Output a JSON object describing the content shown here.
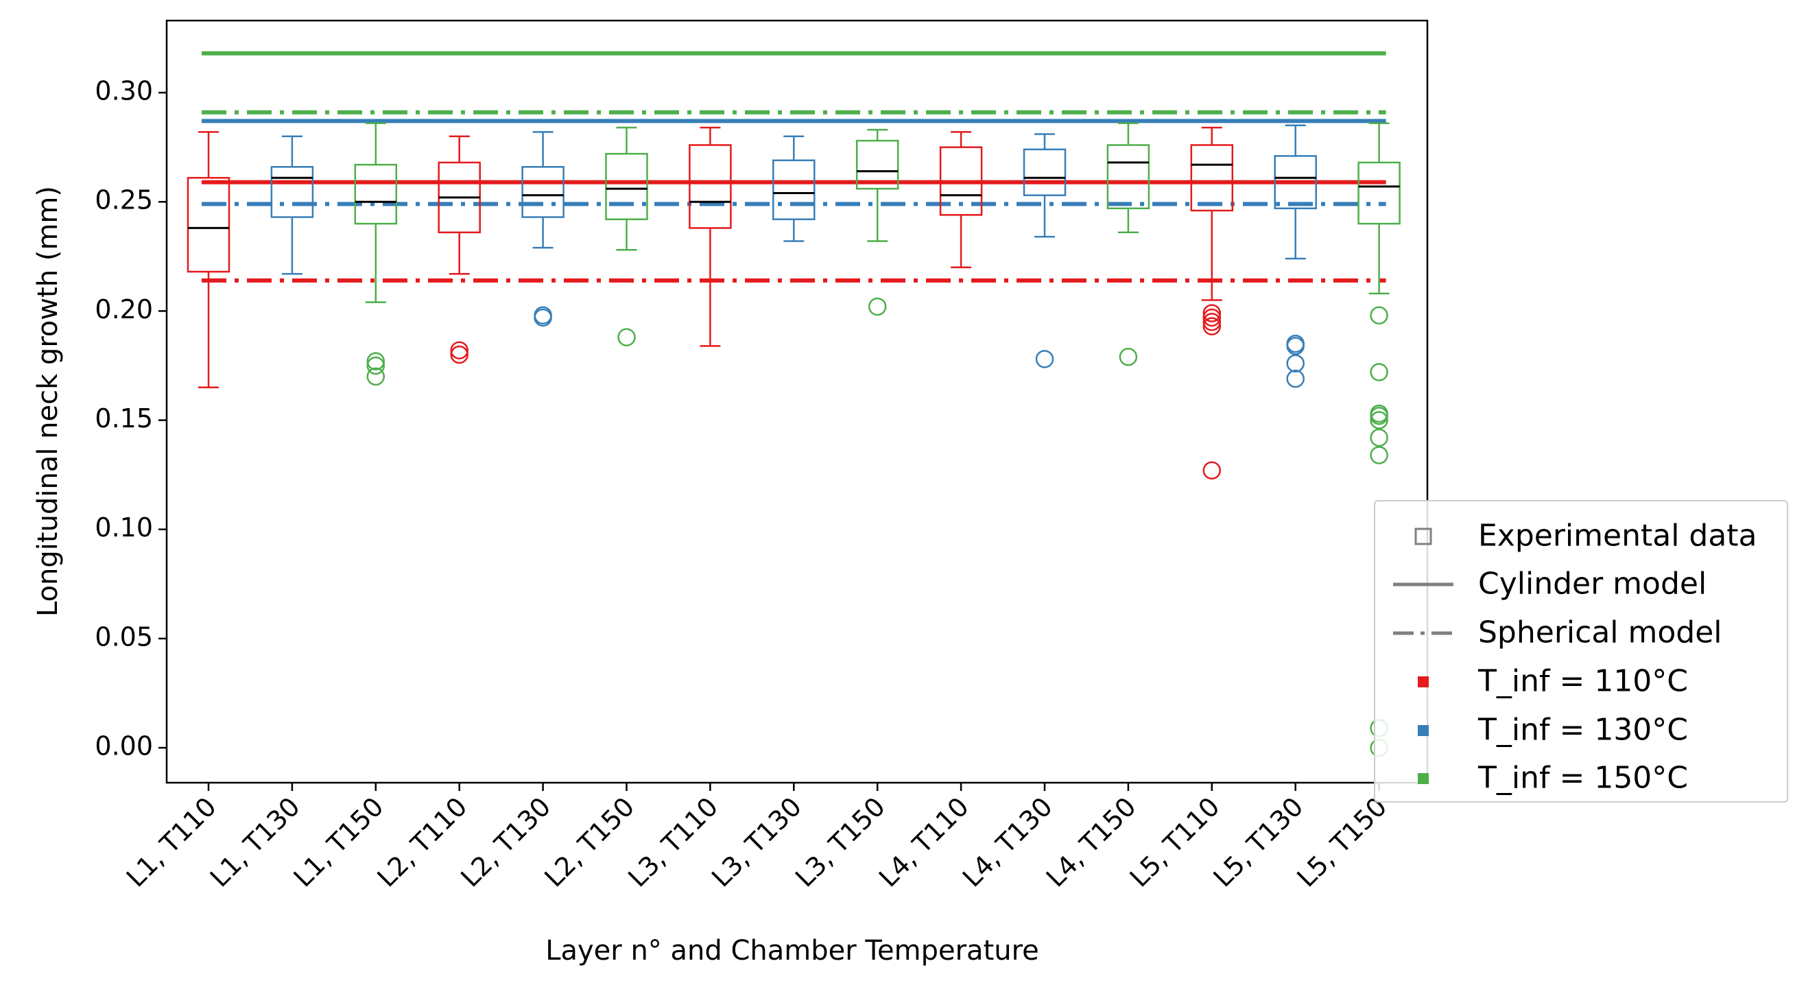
{
  "chart_data": {
    "type": "boxplot",
    "xlabel": "Layer n° and Chamber Temperature",
    "ylabel": "Longitudinal neck growth (mm)",
    "ylim": [
      -0.016,
      0.333
    ],
    "yticks": [
      "0.00",
      "0.05",
      "0.10",
      "0.15",
      "0.20",
      "0.25",
      "0.30"
    ],
    "colors": {
      "T110": "#e41a1c",
      "T130": "#377eb8",
      "T150": "#4daf4a",
      "median": "#000000",
      "legend_gray": "#808080"
    },
    "categories": [
      "L1, T110",
      "L1, T130",
      "L1, T150",
      "L2, T110",
      "L2, T130",
      "L2, T150",
      "L3, T110",
      "L3, T130",
      "L3, T150",
      "L4, T110",
      "L4, T130",
      "L4, T150",
      "L5, T110",
      "L5, T130",
      "L5, T150"
    ],
    "boxes": [
      {
        "label": "L1, T110",
        "temp": "T110",
        "whislo": 0.165,
        "q1": 0.218,
        "med": 0.238,
        "q3": 0.261,
        "whishi": 0.282,
        "fliers": []
      },
      {
        "label": "L1, T130",
        "temp": "T130",
        "whislo": 0.217,
        "q1": 0.243,
        "med": 0.261,
        "q3": 0.266,
        "whishi": 0.28,
        "fliers": []
      },
      {
        "label": "L1, T150",
        "temp": "T150",
        "whislo": 0.204,
        "q1": 0.24,
        "med": 0.25,
        "q3": 0.267,
        "whishi": 0.286,
        "fliers": [
          0.177,
          0.175,
          0.17
        ]
      },
      {
        "label": "L2, T110",
        "temp": "T110",
        "whislo": 0.217,
        "q1": 0.236,
        "med": 0.252,
        "q3": 0.268,
        "whishi": 0.28,
        "fliers": [
          0.182,
          0.18
        ]
      },
      {
        "label": "L2, T130",
        "temp": "T130",
        "whislo": 0.229,
        "q1": 0.243,
        "med": 0.253,
        "q3": 0.266,
        "whishi": 0.282,
        "fliers": [
          0.198,
          0.197
        ]
      },
      {
        "label": "L2, T150",
        "temp": "T150",
        "whislo": 0.228,
        "q1": 0.242,
        "med": 0.256,
        "q3": 0.272,
        "whishi": 0.284,
        "fliers": [
          0.188
        ]
      },
      {
        "label": "L3, T110",
        "temp": "T110",
        "whislo": 0.184,
        "q1": 0.238,
        "med": 0.25,
        "q3": 0.276,
        "whishi": 0.284,
        "fliers": []
      },
      {
        "label": "L3, T130",
        "temp": "T130",
        "whislo": 0.232,
        "q1": 0.242,
        "med": 0.254,
        "q3": 0.269,
        "whishi": 0.28,
        "fliers": []
      },
      {
        "label": "L3, T150",
        "temp": "T150",
        "whislo": 0.232,
        "q1": 0.256,
        "med": 0.264,
        "q3": 0.278,
        "whishi": 0.283,
        "fliers": [
          0.202
        ]
      },
      {
        "label": "L4, T110",
        "temp": "T110",
        "whislo": 0.22,
        "q1": 0.244,
        "med": 0.253,
        "q3": 0.275,
        "whishi": 0.282,
        "fliers": []
      },
      {
        "label": "L4, T130",
        "temp": "T130",
        "whislo": 0.234,
        "q1": 0.253,
        "med": 0.261,
        "q3": 0.274,
        "whishi": 0.281,
        "fliers": [
          0.178
        ]
      },
      {
        "label": "L4, T150",
        "temp": "T150",
        "whislo": 0.236,
        "q1": 0.247,
        "med": 0.268,
        "q3": 0.276,
        "whishi": 0.286,
        "fliers": [
          0.179
        ]
      },
      {
        "label": "L5, T110",
        "temp": "T110",
        "whislo": 0.205,
        "q1": 0.246,
        "med": 0.267,
        "q3": 0.276,
        "whishi": 0.284,
        "fliers": [
          0.199,
          0.197,
          0.195,
          0.193,
          0.127
        ]
      },
      {
        "label": "L5, T130",
        "temp": "T130",
        "whislo": 0.224,
        "q1": 0.247,
        "med": 0.261,
        "q3": 0.271,
        "whishi": 0.285,
        "fliers": [
          0.185,
          0.184,
          0.176,
          0.169
        ]
      },
      {
        "label": "L5, T150",
        "temp": "T150",
        "whislo": 0.208,
        "q1": 0.24,
        "med": 0.257,
        "q3": 0.268,
        "whishi": 0.286,
        "fliers": [
          0.198,
          0.172,
          0.153,
          0.152,
          0.15,
          0.142,
          0.134,
          0.009,
          0.0
        ]
      }
    ],
    "model_lines": [
      {
        "model": "Cylinder model",
        "temp": "T110",
        "style": "solid",
        "value": 0.259
      },
      {
        "model": "Spherical model",
        "temp": "T110",
        "style": "dashdot",
        "value": 0.214
      },
      {
        "model": "Cylinder model",
        "temp": "T130",
        "style": "solid",
        "value": 0.287
      },
      {
        "model": "Spherical model",
        "temp": "T130",
        "style": "dashdot",
        "value": 0.249
      },
      {
        "model": "Cylinder model",
        "temp": "T150",
        "style": "solid",
        "value": 0.318
      },
      {
        "model": "Spherical model",
        "temp": "T150",
        "style": "dashdot",
        "value": 0.291
      }
    ],
    "legend": {
      "location": "lower-right, outside plot",
      "entries": [
        {
          "label": "Experimental data",
          "handle": "open-square",
          "color": "#808080"
        },
        {
          "label": "Cylinder model",
          "handle": "solid-line",
          "color": "#808080"
        },
        {
          "label": "Spherical model",
          "handle": "dashdot-line",
          "color": "#808080"
        },
        {
          "label": "T_inf = 110°C",
          "handle": "filled-square",
          "color": "#e41a1c"
        },
        {
          "label": "T_inf = 130°C",
          "handle": "filled-square",
          "color": "#377eb8"
        },
        {
          "label": "T_inf = 150°C",
          "handle": "filled-square",
          "color": "#4daf4a"
        }
      ]
    }
  }
}
